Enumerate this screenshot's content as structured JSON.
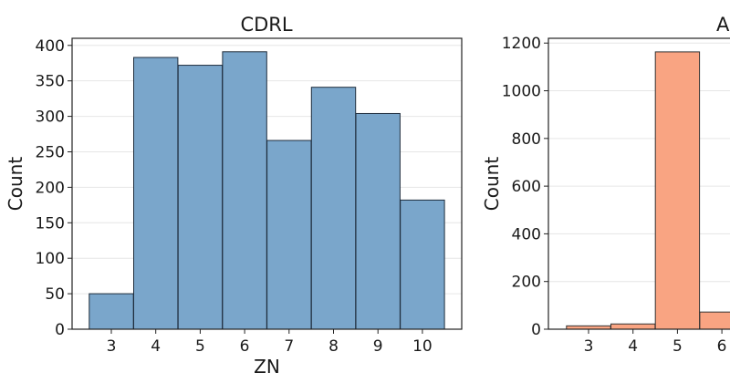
{
  "chart_data": [
    {
      "type": "bar",
      "title": "CDRL",
      "xlabel": "ZN",
      "ylabel": "Count",
      "color": "#7aa6cb",
      "edge_color": "#1f2d3d",
      "categories": [
        "3",
        "4",
        "5",
        "6",
        "7",
        "8",
        "9",
        "10"
      ],
      "values": [
        50,
        383,
        372,
        391,
        266,
        341,
        304,
        182
      ],
      "ylim": [
        0,
        410
      ],
      "yticks": [
        0,
        50,
        100,
        150,
        200,
        250,
        300,
        350,
        400
      ],
      "grid": "horizontal"
    },
    {
      "type": "bar",
      "title": "AN",
      "xlabel": "",
      "ylabel": "Count",
      "color": "#f9a482",
      "edge_color": "#333333",
      "categories": [
        "3",
        "4",
        "5",
        "6"
      ],
      "values": [
        14,
        22,
        1163,
        72
      ],
      "ylim": [
        0,
        1220
      ],
      "yticks": [
        0,
        200,
        400,
        600,
        800,
        1000,
        1200
      ],
      "grid": "horizontal"
    }
  ]
}
